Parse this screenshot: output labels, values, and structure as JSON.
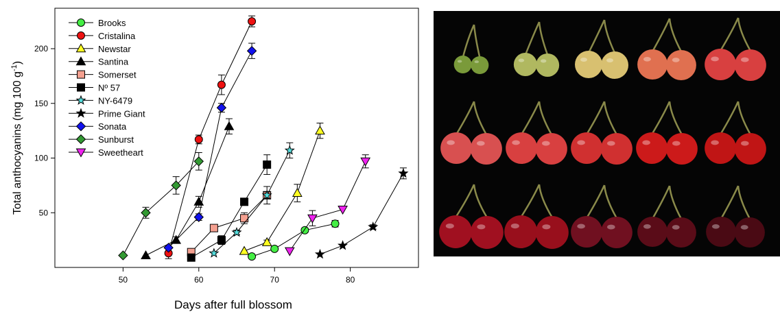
{
  "chart_data": {
    "type": "line",
    "title": "",
    "xlabel": "Days after full blossom",
    "ylabel": "Total anthocyanins (mg 100 g",
    "ylabel_superscript": "-1",
    "ylabel_suffix": ")",
    "xlim": [
      41,
      89
    ],
    "ylim": [
      0,
      237
    ],
    "x_ticks": [
      50,
      60,
      70,
      80
    ],
    "y_ticks": [
      50,
      100,
      150,
      200
    ],
    "grid": false,
    "legend_position": "top-left",
    "series": [
      {
        "name": "Brooks",
        "marker": "circle",
        "color": "#44ee44",
        "x": [
          67,
          70,
          74,
          78
        ],
        "y": [
          10,
          17,
          34,
          40
        ],
        "err": [
          0,
          2,
          2,
          3
        ]
      },
      {
        "name": "Cristalina",
        "marker": "circle",
        "color": "#ee1111",
        "x": [
          56,
          60,
          63,
          67
        ],
        "y": [
          13,
          117,
          167,
          225
        ],
        "err": [
          5,
          4,
          9,
          5
        ]
      },
      {
        "name": "Newstar",
        "marker": "triangle-up",
        "color": "#ffff22",
        "x": [
          66,
          69,
          73,
          76
        ],
        "y": [
          15,
          23,
          68,
          125
        ],
        "err": [
          0,
          2,
          8,
          7
        ]
      },
      {
        "name": "Santina",
        "marker": "triangle-up",
        "color": "#000000",
        "x": [
          53,
          57,
          60,
          64
        ],
        "y": [
          11,
          25,
          60,
          129
        ],
        "err": [
          0,
          3,
          5,
          7
        ]
      },
      {
        "name": "Somerset",
        "marker": "square",
        "color": "#f4a090",
        "x": [
          59,
          62,
          66,
          69
        ],
        "y": [
          14,
          36,
          45,
          66
        ],
        "err": [
          2,
          2,
          5,
          8
        ]
      },
      {
        "name": "Nº 57",
        "marker": "square",
        "color": "#000000",
        "x": [
          59,
          63,
          66,
          69
        ],
        "y": [
          9,
          25,
          60,
          94
        ],
        "err": [
          2,
          4,
          2,
          9
        ]
      },
      {
        "name": "NY-6479",
        "marker": "star",
        "color": "#55dddd",
        "x": [
          62,
          65,
          69,
          72
        ],
        "y": [
          13,
          32,
          66,
          107
        ],
        "err": [
          0,
          2,
          3,
          7
        ]
      },
      {
        "name": "Prime Giant",
        "marker": "star",
        "color": "#000000",
        "x": [
          76,
          79,
          83,
          87
        ],
        "y": [
          12,
          20,
          37,
          86
        ],
        "err": [
          0,
          0,
          2,
          5
        ]
      },
      {
        "name": "Sonata",
        "marker": "diamond",
        "color": "#1111ee",
        "x": [
          56,
          60,
          63,
          67
        ],
        "y": [
          18,
          46,
          146,
          198
        ],
        "err": [
          0,
          3,
          4,
          7
        ]
      },
      {
        "name": "Sunburst",
        "marker": "diamond",
        "color": "#339933",
        "x": [
          50,
          53,
          57,
          60
        ],
        "y": [
          11,
          50,
          75,
          97
        ],
        "err": [
          0,
          5,
          8,
          8
        ]
      },
      {
        "name": "Sweetheart",
        "marker": "triangle-down",
        "color": "#ee22ee",
        "x": [
          72,
          75,
          79,
          82
        ],
        "y": [
          15,
          45,
          53,
          97
        ],
        "err": [
          0,
          7,
          0,
          6
        ]
      }
    ]
  },
  "photo": {
    "rows": [
      {
        "stage_colors": [
          "#7a9a3a",
          "#b0b860",
          "#d8c070",
          "#e07050",
          "#d84040"
        ]
      },
      {
        "stage_colors": [
          "#d85050",
          "#d84040",
          "#d03030",
          "#cc1a1a",
          "#c01515"
        ]
      },
      {
        "stage_colors": [
          "#a01020",
          "#980f1c",
          "#701020",
          "#5a0c18",
          "#4a0a14"
        ]
      }
    ]
  }
}
